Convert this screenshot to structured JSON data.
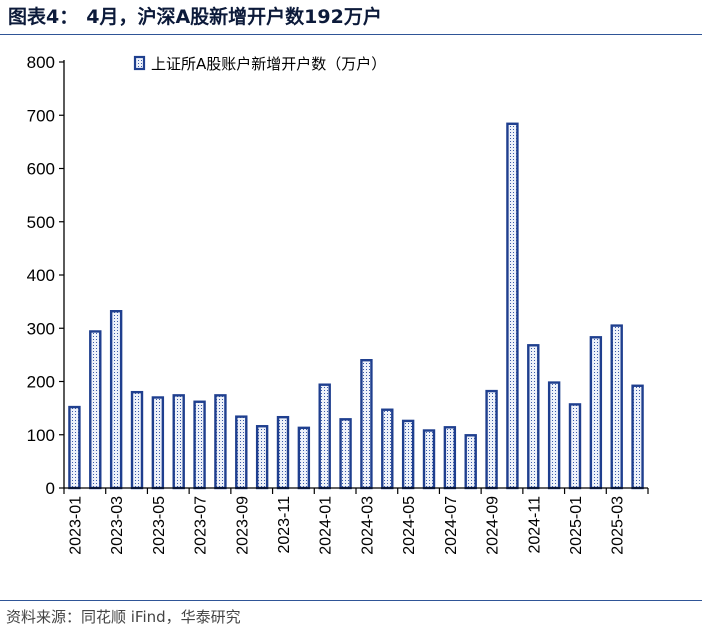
{
  "header": {
    "label": "图表4：",
    "title": "4月，沪深A股新增开户数192万户"
  },
  "footer": {
    "source": "资料来源：同花顺 iFind，华泰研究"
  },
  "colors": {
    "bar_stroke": "#1f3f8f",
    "bar_fill": "#eef2fa",
    "bar_pattern": "#3a5aa8",
    "axis": "#000000",
    "rule": "#2f5597"
  },
  "chart_data": {
    "type": "bar",
    "title": "",
    "xlabel": "",
    "ylabel": "",
    "ylim": [
      0,
      800
    ],
    "y_ticks": [
      0,
      100,
      200,
      300,
      400,
      500,
      600,
      700,
      800
    ],
    "grid": false,
    "legend_position": "top",
    "x_tick_labels": [
      "2023-01",
      "2023-03",
      "2023-05",
      "2023-07",
      "2023-09",
      "2023-11",
      "2024-01",
      "2024-03",
      "2024-05",
      "2024-07",
      "2024-09",
      "2024-11",
      "2025-01",
      "2025-03"
    ],
    "categories": [
      "2023-01",
      "2023-02",
      "2023-03",
      "2023-04",
      "2023-05",
      "2023-06",
      "2023-07",
      "2023-08",
      "2023-09",
      "2023-10",
      "2023-11",
      "2023-12",
      "2024-01",
      "2024-02",
      "2024-03",
      "2024-04",
      "2024-05",
      "2024-06",
      "2024-07",
      "2024-08",
      "2024-09",
      "2024-10",
      "2024-11",
      "2024-12",
      "2025-01",
      "2025-02",
      "2025-03",
      "2025-04"
    ],
    "series": [
      {
        "name": "上证所A股账户新增开户数（万户）",
        "values": [
          152,
          294,
          332,
          180,
          170,
          174,
          162,
          174,
          134,
          116,
          133,
          113,
          194,
          129,
          240,
          147,
          126,
          108,
          114,
          99,
          182,
          684,
          268,
          198,
          157,
          283,
          305,
          192
        ]
      }
    ]
  }
}
